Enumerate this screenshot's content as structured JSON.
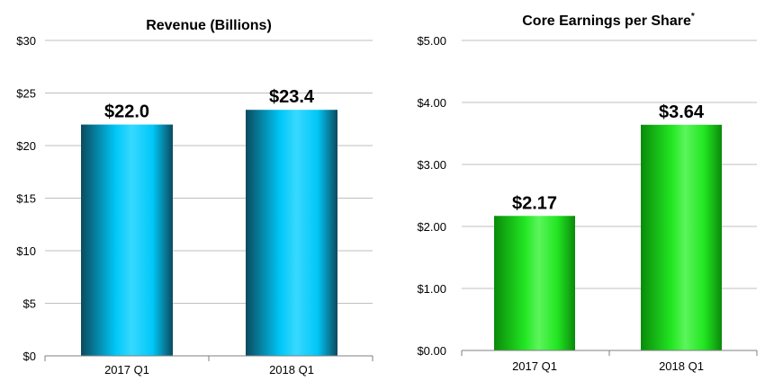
{
  "chart_data": [
    {
      "type": "bar",
      "title": "Revenue (Billions)",
      "categories": [
        "2017 Q1",
        "2018 Q1"
      ],
      "values": [
        22.0,
        23.4
      ],
      "data_labels": [
        "$22.0",
        "$23.4"
      ],
      "ylim": [
        0,
        30
      ],
      "yticks": [
        0,
        5,
        10,
        15,
        20,
        25,
        30
      ],
      "ytick_labels": [
        "$0",
        "$5",
        "$10",
        "$15",
        "$20",
        "$25",
        "$30"
      ],
      "grid": true,
      "bar_colors": {
        "dark": "#0b4a5e",
        "mid": "#00c8f8",
        "light": "#38d8ff"
      }
    },
    {
      "type": "bar",
      "title": "Core Earnings per Share",
      "title_marker": "*",
      "categories": [
        "2017 Q1",
        "2018 Q1"
      ],
      "values": [
        2.17,
        3.64
      ],
      "data_labels": [
        "$2.17",
        "$3.64"
      ],
      "ylim": [
        0,
        5
      ],
      "yticks": [
        0,
        1,
        2,
        3,
        4,
        5
      ],
      "ytick_labels": [
        "$0.00",
        "$1.00",
        "$2.00",
        "$3.00",
        "$4.00",
        "$5.00"
      ],
      "grid": true,
      "bar_colors": {
        "dark": "#0a8a0a",
        "mid": "#22e622",
        "light": "#5cf55c"
      }
    }
  ]
}
